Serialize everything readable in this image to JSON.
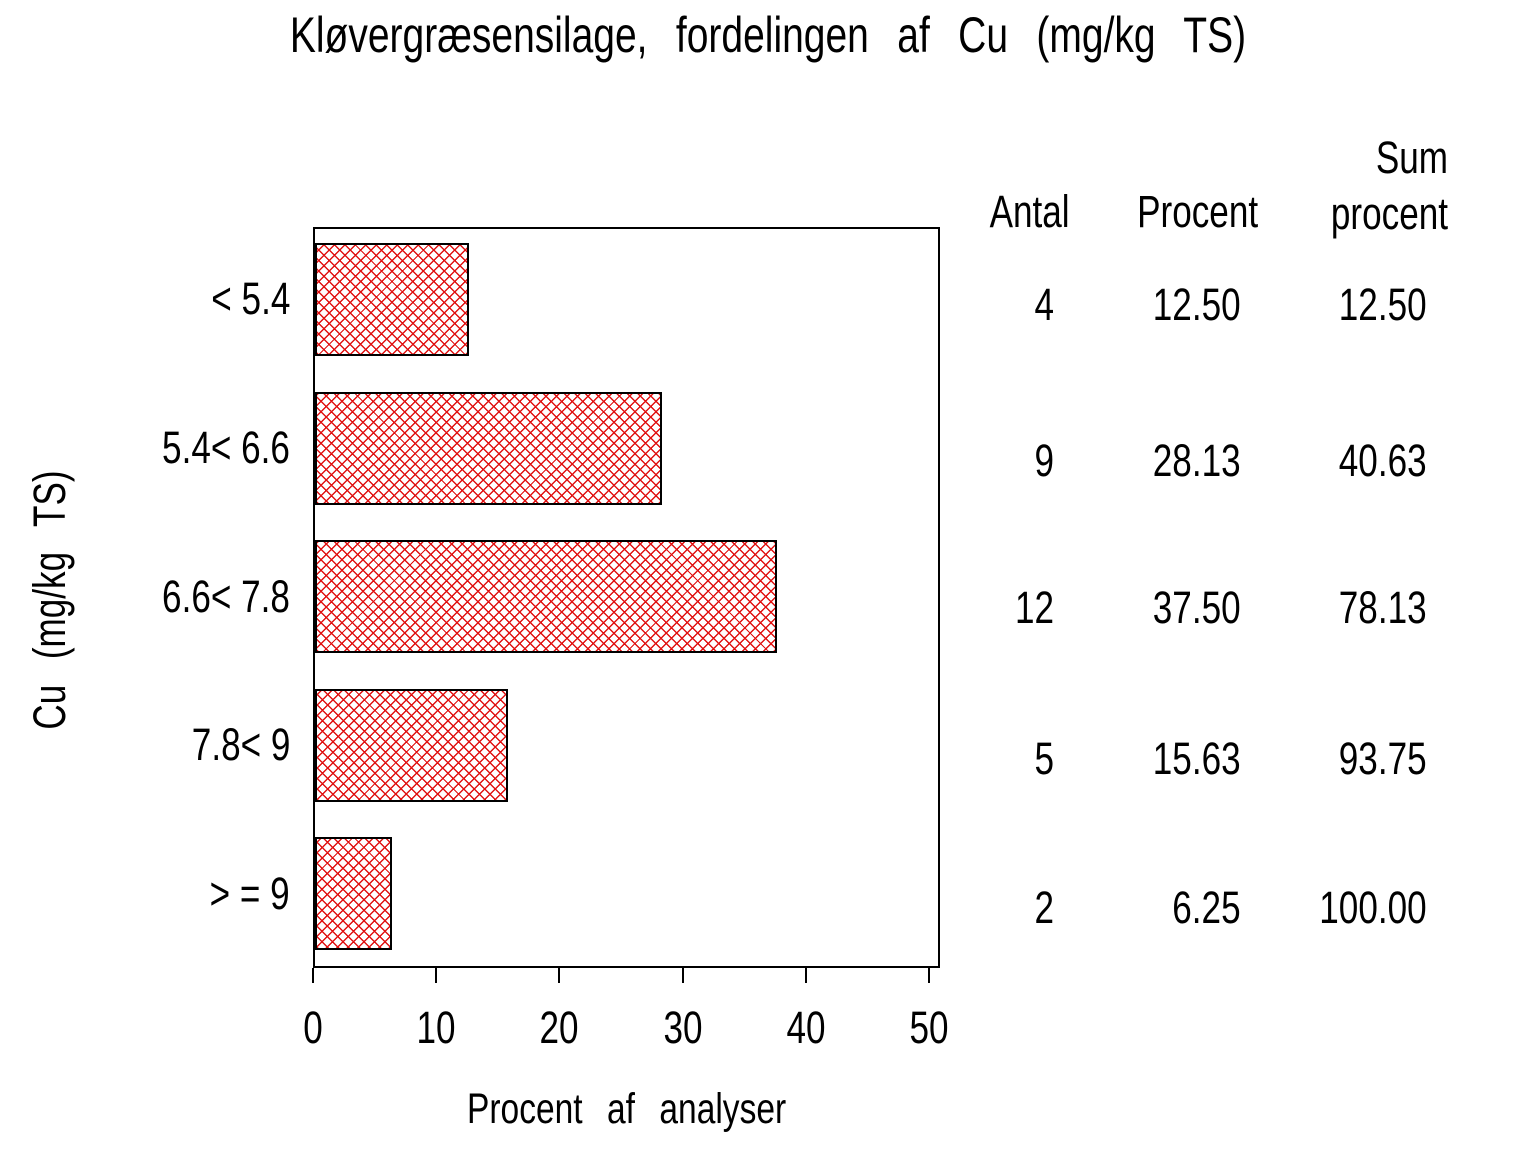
{
  "chart_data": {
    "type": "bar",
    "orientation": "horizontal",
    "title": "Kløvergræsensilage, fordelingen af Cu (mg/kg TS)",
    "xlabel": "Procent af analyser",
    "ylabel": "Cu (mg/kg TS)",
    "xlim": [
      0,
      50
    ],
    "xticks": [
      "0",
      "10",
      "20",
      "30",
      "40",
      "50"
    ],
    "categories": [
      "< 5.4",
      "5.4< 6.6",
      "6.6< 7.8",
      "7.8< 9",
      "> = 9"
    ],
    "values": [
      12.5,
      28.13,
      37.5,
      15.63,
      6.25
    ],
    "counts": [
      4,
      9,
      12,
      5,
      2
    ],
    "grid": false,
    "bar_pattern": "red diagonal crosshatch",
    "bar_color": "#e01212",
    "bar_border_color": "#000000",
    "side_table": {
      "col_headers": [
        "Antal",
        "Procent",
        "Sum procent"
      ],
      "rows": [
        {
          "antal": "4",
          "procent": "12.50",
          "sum_procent": "12.50"
        },
        {
          "antal": "9",
          "procent": "28.13",
          "sum_procent": "40.63"
        },
        {
          "antal": "12",
          "procent": "37.50",
          "sum_procent": "78.13"
        },
        {
          "antal": "5",
          "procent": "15.63",
          "sum_procent": "93.75"
        },
        {
          "antal": "2",
          "procent": "6.25",
          "sum_procent": "100.00"
        }
      ]
    }
  }
}
